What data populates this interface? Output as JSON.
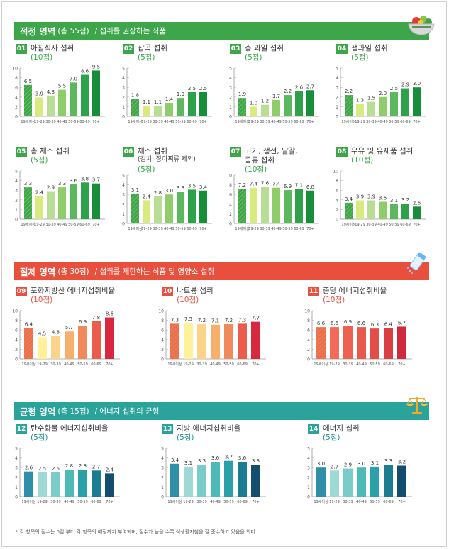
{
  "colors": {
    "green": "#3ea64a",
    "green_dark": "#1e8e3e",
    "red": "#e8503d",
    "teal": "#2aa39b",
    "hatch_green": "#7cc46a",
    "hatch_red": "#f08a63",
    "hatch_teal": "#2f8fa8"
  },
  "sections": [
    {
      "key": "adequacy",
      "title": "적정 영역",
      "count": "(총 55점)",
      "description": "/  섭취를 권장하는 식품",
      "color": "#3ea64a",
      "icon": "salad-bowl-icon",
      "charts": [
        {
          "no": "01",
          "title": "아침식사 섭취",
          "subtitle": "",
          "points": "(10점)",
          "ymax": 10,
          "ticks": [
            0,
            2,
            4,
            6,
            8,
            10
          ],
          "values": [
            6.5,
            3.9,
            4.3,
            5.5,
            7.0,
            8.6,
            9.5
          ],
          "labels": [
            "6.5",
            "3.9",
            "4.3",
            "5.5",
            "7.0",
            "8.6",
            "9.5"
          ],
          "bar_colors": [
            "#3ea64a",
            "#d9ea7e",
            "#b8dd94",
            "#8fcc6a",
            "#5cb85c",
            "#2ea24a",
            "#178f3a"
          ]
        },
        {
          "no": "02",
          "title": "잡곡 섭취",
          "subtitle": "",
          "points": "(5점)",
          "ymax": 5,
          "ticks": [
            0,
            1,
            2,
            3,
            4,
            5
          ],
          "values": [
            1.8,
            1.1,
            1.1,
            1.4,
            1.9,
            2.5,
            2.5
          ],
          "labels": [
            "1.8",
            "1.1",
            "1.1",
            "1.4",
            "1.9",
            "2.5",
            "2.5"
          ],
          "bar_colors": [
            "#3ea64a",
            "#d9ea7e",
            "#b8dd94",
            "#8fcc6a",
            "#5cb85c",
            "#2ea24a",
            "#178f3a"
          ]
        },
        {
          "no": "03",
          "title": "총 과일 섭취",
          "subtitle": "",
          "points": "(5점)",
          "ymax": 5,
          "ticks": [
            0,
            1,
            2,
            3,
            4,
            5
          ],
          "values": [
            1.9,
            1.0,
            1.2,
            1.7,
            2.2,
            2.6,
            2.7
          ],
          "labels": [
            "1.9",
            "1.0",
            "1.2",
            "1.7",
            "2.2",
            "2.6",
            "2.7"
          ],
          "bar_colors": [
            "#3ea64a",
            "#d9ea7e",
            "#b8dd94",
            "#8fcc6a",
            "#5cb85c",
            "#2ea24a",
            "#178f3a"
          ]
        },
        {
          "no": "04",
          "title": "생과일 섭취",
          "subtitle": "",
          "points": "(5점)",
          "ymax": 5,
          "ticks": [
            0,
            1,
            2,
            3,
            4,
            5
          ],
          "values": [
            2.2,
            1.3,
            1.5,
            2.0,
            2.5,
            2.9,
            3.0
          ],
          "labels": [
            "2.2",
            "1.3",
            "1.5",
            "2.0",
            "2.5",
            "2.9",
            "3.0"
          ],
          "bar_colors": [
            "#3ea64a",
            "#d9ea7e",
            "#b8dd94",
            "#8fcc6a",
            "#5cb85c",
            "#2ea24a",
            "#178f3a"
          ]
        },
        {
          "no": "05",
          "title": "총 채소 섭취",
          "subtitle": "",
          "points": "(5점)",
          "ymax": 5,
          "ticks": [
            0,
            1,
            2,
            3,
            4,
            5
          ],
          "values": [
            3.3,
            2.4,
            2.9,
            3.3,
            3.6,
            3.8,
            3.7
          ],
          "labels": [
            "3.3",
            "2.4",
            "2.9",
            "3.3",
            "3.6",
            "3.8",
            "3.7"
          ],
          "bar_colors": [
            "#3ea64a",
            "#d9ea7e",
            "#b8dd94",
            "#8fcc6a",
            "#5cb85c",
            "#2ea24a",
            "#178f3a"
          ]
        },
        {
          "no": "06",
          "title": "채소 섭취",
          "subtitle": "(김치, 장아찌류 제외)",
          "points": "(5점)",
          "ymax": 5,
          "ticks": [
            0,
            1,
            2,
            3,
            4,
            5
          ],
          "values": [
            3.1,
            2.4,
            2.8,
            3.0,
            3.3,
            3.5,
            3.4
          ],
          "labels": [
            "3.1",
            "2.4",
            "2.8",
            "3.0",
            "3.3",
            "3.5",
            "3.4"
          ],
          "bar_colors": [
            "#3ea64a",
            "#d9ea7e",
            "#b8dd94",
            "#8fcc6a",
            "#5cb85c",
            "#2ea24a",
            "#178f3a"
          ]
        },
        {
          "no": "07",
          "title": "고기, 생선, 달걀,",
          "subtitle": "콩류 섭취",
          "points": "(10점)",
          "ymax": 10,
          "ticks": [
            0,
            2,
            4,
            6,
            8,
            10
          ],
          "values": [
            7.2,
            7.4,
            7.6,
            7.4,
            6.9,
            7.1,
            6.8
          ],
          "labels": [
            "7.2",
            "7.4",
            "7.6",
            "7.4",
            "6.9",
            "7.1",
            "6.8"
          ],
          "bar_colors": [
            "#3ea64a",
            "#d9ea7e",
            "#b8dd94",
            "#8fcc6a",
            "#5cb85c",
            "#2ea24a",
            "#178f3a"
          ]
        },
        {
          "no": "08",
          "title": "우유 및 유제품 섭취",
          "subtitle": "",
          "points": "(10점)",
          "ymax": 10,
          "ticks": [
            0,
            2,
            4,
            6,
            8,
            10
          ],
          "values": [
            3.4,
            3.9,
            3.9,
            3.6,
            3.1,
            3.2,
            2.6
          ],
          "labels": [
            "3.4",
            "3.9",
            "3.9",
            "3.6",
            "3.1",
            "3.2",
            "2.6"
          ],
          "bar_colors": [
            "#3ea64a",
            "#d9ea7e",
            "#b8dd94",
            "#8fcc6a",
            "#5cb85c",
            "#2ea24a",
            "#178f3a"
          ]
        }
      ]
    },
    {
      "key": "moderation",
      "title": "절제 영역",
      "count": "(총 30점)",
      "description": "/  섭취를 제한하는 식품 및 영양소 섭취",
      "color": "#e8503d",
      "icon": "salt-shaker-icon",
      "charts": [
        {
          "no": "09",
          "title": "포화지방산 에너지섭취비율",
          "subtitle": "",
          "points": "(10점)",
          "ymax": 10,
          "ticks": [
            0,
            2,
            4,
            6,
            8,
            10
          ],
          "values": [
            6.4,
            4.5,
            4.8,
            5.7,
            6.9,
            7.8,
            8.6
          ],
          "labels": [
            "6.4",
            "4.5",
            "4.8",
            "5.7",
            "6.9",
            "7.8",
            "8.6"
          ],
          "bar_colors": [
            "#e96e4a",
            "#fff09a",
            "#fbd48a",
            "#f7b06b",
            "#f08a5c",
            "#ea5c4c",
            "#d8283e"
          ]
        },
        {
          "no": "10",
          "title": "나트륨 섭취",
          "subtitle": "",
          "points": "(10점)",
          "ymax": 10,
          "ticks": [
            0,
            2,
            4,
            6,
            8,
            10
          ],
          "values": [
            7.3,
            7.5,
            7.2,
            7.1,
            7.2,
            7.3,
            7.7
          ],
          "labels": [
            "7.3",
            "7.5",
            "7.2",
            "7.1",
            "7.2",
            "7.3",
            "7.7"
          ],
          "bar_colors": [
            "#e96e4a",
            "#fff09a",
            "#fbd48a",
            "#f7b06b",
            "#f08a5c",
            "#ea5c4c",
            "#d8283e"
          ]
        },
        {
          "no": "11",
          "title": "총당 에너지섭취비율",
          "subtitle": "",
          "points": "(10점)",
          "ymax": 10,
          "ticks": [
            0,
            2,
            4,
            6,
            8,
            10
          ],
          "values": [
            6.6,
            6.6,
            6.9,
            6.6,
            6.3,
            6.4,
            6.7
          ],
          "labels": [
            "6.6",
            "6.6",
            "6.9",
            "6.6",
            "6.3",
            "6.4",
            "6.7"
          ],
          "bar_colors": [
            "#e96e4a",
            "#f46a5a",
            "#ee6152",
            "#e9584c",
            "#e14f46",
            "#d93f42",
            "#ce2c3e"
          ]
        }
      ]
    },
    {
      "key": "balance",
      "title": "균형 영역",
      "count": "(총 15점)",
      "description": "/  에너지 섭취의 균형",
      "color": "#2aa39b",
      "icon": "balance-scale-icon",
      "charts": [
        {
          "no": "12",
          "title": "탄수화물 에너지섭취비율",
          "subtitle": "",
          "points": "(5점)",
          "ymax": 5,
          "ticks": [
            0,
            1,
            2,
            3,
            4,
            5
          ],
          "values": [
            2.6,
            2.5,
            2.5,
            2.8,
            2.8,
            2.7,
            2.4
          ],
          "labels": [
            "2.6",
            "2.5",
            "2.5",
            "2.8",
            "2.8",
            "2.7",
            "2.4"
          ],
          "bar_colors": [
            "#2f8fa8",
            "#9fd9d6",
            "#79ccc8",
            "#4dbab7",
            "#2aa1a8",
            "#1b7d91",
            "#134e6e"
          ]
        },
        {
          "no": "13",
          "title": "지방 에너지섭취비율",
          "subtitle": "",
          "points": "(5점)",
          "ymax": 5,
          "ticks": [
            0,
            1,
            2,
            3,
            4,
            5
          ],
          "values": [
            3.4,
            3.1,
            3.3,
            3.6,
            3.7,
            3.6,
            3.3
          ],
          "labels": [
            "3.4",
            "3.1",
            "3.3",
            "3.6",
            "3.7",
            "3.6",
            "3.3"
          ],
          "bar_colors": [
            "#2f8fa8",
            "#9fd9d6",
            "#79ccc8",
            "#4dbab7",
            "#2aa1a8",
            "#1b7d91",
            "#134e6e"
          ]
        },
        {
          "no": "14",
          "title": "에너지 섭취",
          "subtitle": "",
          "points": "(5점)",
          "ymax": 5,
          "ticks": [
            0,
            1,
            2,
            3,
            4,
            5
          ],
          "values": [
            3.0,
            2.7,
            2.9,
            3.0,
            3.1,
            3.3,
            3.2
          ],
          "labels": [
            "3.0",
            "2.7",
            "2.9",
            "3.0",
            "3.1",
            "3.3",
            "3.2"
          ],
          "bar_colors": [
            "#2f8fa8",
            "#9fd9d6",
            "#79ccc8",
            "#4dbab7",
            "#2aa1a8",
            "#1b7d91",
            "#134e6e"
          ]
        }
      ]
    }
  ],
  "age_categories": [
    "19세이상",
    "19-29",
    "30-39",
    "40-49",
    "50-59",
    "60-69",
    "70+"
  ],
  "footnote": "* 각 항목의 점수는 0점 부터 각 항목의 배점까지 부여되며, 점수가 높을 수록 식생활지침을 잘 준수하고 있음을 의미",
  "chart_data": [
    {
      "type": "bar",
      "title": "01 아침식사 섭취 (10점)",
      "categories": [
        "19세이상",
        "19-29",
        "30-39",
        "40-49",
        "50-59",
        "60-69",
        "70+"
      ],
      "values": [
        6.5,
        3.9,
        4.3,
        5.5,
        7.0,
        8.6,
        9.5
      ],
      "ylim": [
        0,
        10
      ]
    },
    {
      "type": "bar",
      "title": "02 잡곡 섭취 (5점)",
      "categories": [
        "19세이상",
        "19-29",
        "30-39",
        "40-49",
        "50-59",
        "60-69",
        "70+"
      ],
      "values": [
        1.8,
        1.1,
        1.1,
        1.4,
        1.9,
        2.5,
        2.5
      ],
      "ylim": [
        0,
        5
      ]
    },
    {
      "type": "bar",
      "title": "03 총 과일 섭취 (5점)",
      "categories": [
        "19세이상",
        "19-29",
        "30-39",
        "40-49",
        "50-59",
        "60-69",
        "70+"
      ],
      "values": [
        1.9,
        1.0,
        1.2,
        1.7,
        2.2,
        2.6,
        2.7
      ],
      "ylim": [
        0,
        5
      ]
    },
    {
      "type": "bar",
      "title": "04 생과일 섭취 (5점)",
      "categories": [
        "19세이상",
        "19-29",
        "30-39",
        "40-49",
        "50-59",
        "60-69",
        "70+"
      ],
      "values": [
        2.2,
        1.3,
        1.5,
        2.0,
        2.5,
        2.9,
        3.0
      ],
      "ylim": [
        0,
        5
      ]
    },
    {
      "type": "bar",
      "title": "05 총 채소 섭취 (5점)",
      "categories": [
        "19세이상",
        "19-29",
        "30-39",
        "40-49",
        "50-59",
        "60-69",
        "70+"
      ],
      "values": [
        3.3,
        2.4,
        2.9,
        3.3,
        3.6,
        3.8,
        3.7
      ],
      "ylim": [
        0,
        5
      ]
    },
    {
      "type": "bar",
      "title": "06 채소 섭취 (김치, 장아찌류 제외) (5점)",
      "categories": [
        "19세이상",
        "19-29",
        "30-39",
        "40-49",
        "50-59",
        "60-69",
        "70+"
      ],
      "values": [
        3.1,
        2.4,
        2.8,
        3.0,
        3.3,
        3.5,
        3.4
      ],
      "ylim": [
        0,
        5
      ]
    },
    {
      "type": "bar",
      "title": "07 고기, 생선, 달걀, 콩류 섭취 (10점)",
      "categories": [
        "19세이상",
        "19-29",
        "30-39",
        "40-49",
        "50-59",
        "60-69",
        "70+"
      ],
      "values": [
        7.2,
        7.4,
        7.6,
        7.4,
        6.9,
        7.1,
        6.8
      ],
      "ylim": [
        0,
        10
      ]
    },
    {
      "type": "bar",
      "title": "08 우유 및 유제품 섭취 (10점)",
      "categories": [
        "19세이상",
        "19-29",
        "30-39",
        "40-49",
        "50-59",
        "60-69",
        "70+"
      ],
      "values": [
        3.4,
        3.9,
        3.9,
        3.6,
        3.1,
        3.2,
        2.6
      ],
      "ylim": [
        0,
        10
      ]
    },
    {
      "type": "bar",
      "title": "09 포화지방산 에너지섭취비율 (10점)",
      "categories": [
        "19세이상",
        "19-29",
        "30-39",
        "40-49",
        "50-59",
        "60-69",
        "70+"
      ],
      "values": [
        6.4,
        4.5,
        4.8,
        5.7,
        6.9,
        7.8,
        8.6
      ],
      "ylim": [
        0,
        10
      ]
    },
    {
      "type": "bar",
      "title": "10 나트륨 섭취 (10점)",
      "categories": [
        "19세이상",
        "19-29",
        "30-39",
        "40-49",
        "50-59",
        "60-69",
        "70+"
      ],
      "values": [
        7.3,
        7.5,
        7.2,
        7.1,
        7.2,
        7.3,
        7.7
      ],
      "ylim": [
        0,
        10
      ]
    },
    {
      "type": "bar",
      "title": "11 총당 에너지섭취비율 (10점)",
      "categories": [
        "19세이상",
        "19-29",
        "30-39",
        "40-49",
        "50-59",
        "60-69",
        "70+"
      ],
      "values": [
        6.6,
        6.6,
        6.9,
        6.6,
        6.3,
        6.4,
        6.7
      ],
      "ylim": [
        0,
        10
      ]
    },
    {
      "type": "bar",
      "title": "12 탄수화물 에너지섭취비율 (5점)",
      "categories": [
        "19세이상",
        "19-29",
        "30-39",
        "40-49",
        "50-59",
        "60-69",
        "70+"
      ],
      "values": [
        2.6,
        2.5,
        2.5,
        2.8,
        2.8,
        2.7,
        2.4
      ],
      "ylim": [
        0,
        5
      ]
    },
    {
      "type": "bar",
      "title": "13 지방 에너지섭취비율 (5점)",
      "categories": [
        "19세이상",
        "19-29",
        "30-39",
        "40-49",
        "50-59",
        "60-69",
        "70+"
      ],
      "values": [
        3.4,
        3.1,
        3.3,
        3.6,
        3.7,
        3.6,
        3.3
      ],
      "ylim": [
        0,
        5
      ]
    },
    {
      "type": "bar",
      "title": "14 에너지 섭취 (5점)",
      "categories": [
        "19세이상",
        "19-29",
        "30-39",
        "40-49",
        "50-59",
        "60-69",
        "70+"
      ],
      "values": [
        3.0,
        2.7,
        2.9,
        3.0,
        3.1,
        3.3,
        3.2
      ],
      "ylim": [
        0,
        5
      ]
    }
  ]
}
